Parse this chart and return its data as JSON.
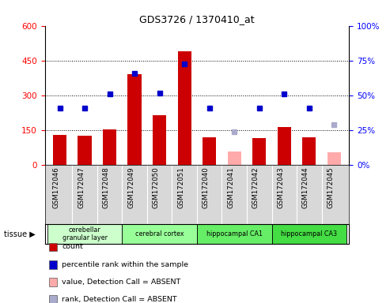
{
  "title": "GDS3726 / 1370410_at",
  "samples": [
    "GSM172046",
    "GSM172047",
    "GSM172048",
    "GSM172049",
    "GSM172050",
    "GSM172051",
    "GSM172040",
    "GSM172041",
    "GSM172042",
    "GSM172043",
    "GSM172044",
    "GSM172045"
  ],
  "count_values": [
    130,
    125,
    155,
    390,
    215,
    490,
    120,
    null,
    115,
    165,
    120,
    null
  ],
  "absent_value_values": [
    null,
    null,
    null,
    null,
    null,
    null,
    null,
    60,
    null,
    null,
    null,
    55
  ],
  "rank_values": [
    245,
    245,
    305,
    395,
    310,
    435,
    245,
    null,
    245,
    305,
    245,
    null
  ],
  "rank_absent_values": [
    null,
    null,
    null,
    null,
    null,
    null,
    null,
    145,
    null,
    null,
    null,
    175
  ],
  "tissue_groups": [
    {
      "label": "cerebellar\ngranular layer",
      "start": 0,
      "end": 3,
      "color": "#ccffcc"
    },
    {
      "label": "cerebral cortex",
      "start": 3,
      "end": 6,
      "color": "#99ff99"
    },
    {
      "label": "hippocampal CA1",
      "start": 6,
      "end": 9,
      "color": "#66ee66"
    },
    {
      "label": "hippocampal CA3",
      "start": 9,
      "end": 12,
      "color": "#44dd44"
    }
  ],
  "ylim_left": [
    0,
    600
  ],
  "ylim_right": [
    0,
    100
  ],
  "yticks_left": [
    0,
    150,
    300,
    450,
    600
  ],
  "yticks_right": [
    0,
    25,
    50,
    75,
    100
  ],
  "bar_color_present": "#cc0000",
  "bar_color_absent": "#ffaaaa",
  "rank_color_present": "#0000cc",
  "rank_color_absent": "#aaaacc",
  "bar_width": 0.55,
  "plot_bg": "#ffffff",
  "label_bg": "#d8d8d8",
  "legend_items": [
    {
      "label": "count",
      "color": "#cc0000"
    },
    {
      "label": "percentile rank within the sample",
      "color": "#0000cc"
    },
    {
      "label": "value, Detection Call = ABSENT",
      "color": "#ffaaaa"
    },
    {
      "label": "rank, Detection Call = ABSENT",
      "color": "#aaaacc"
    }
  ]
}
